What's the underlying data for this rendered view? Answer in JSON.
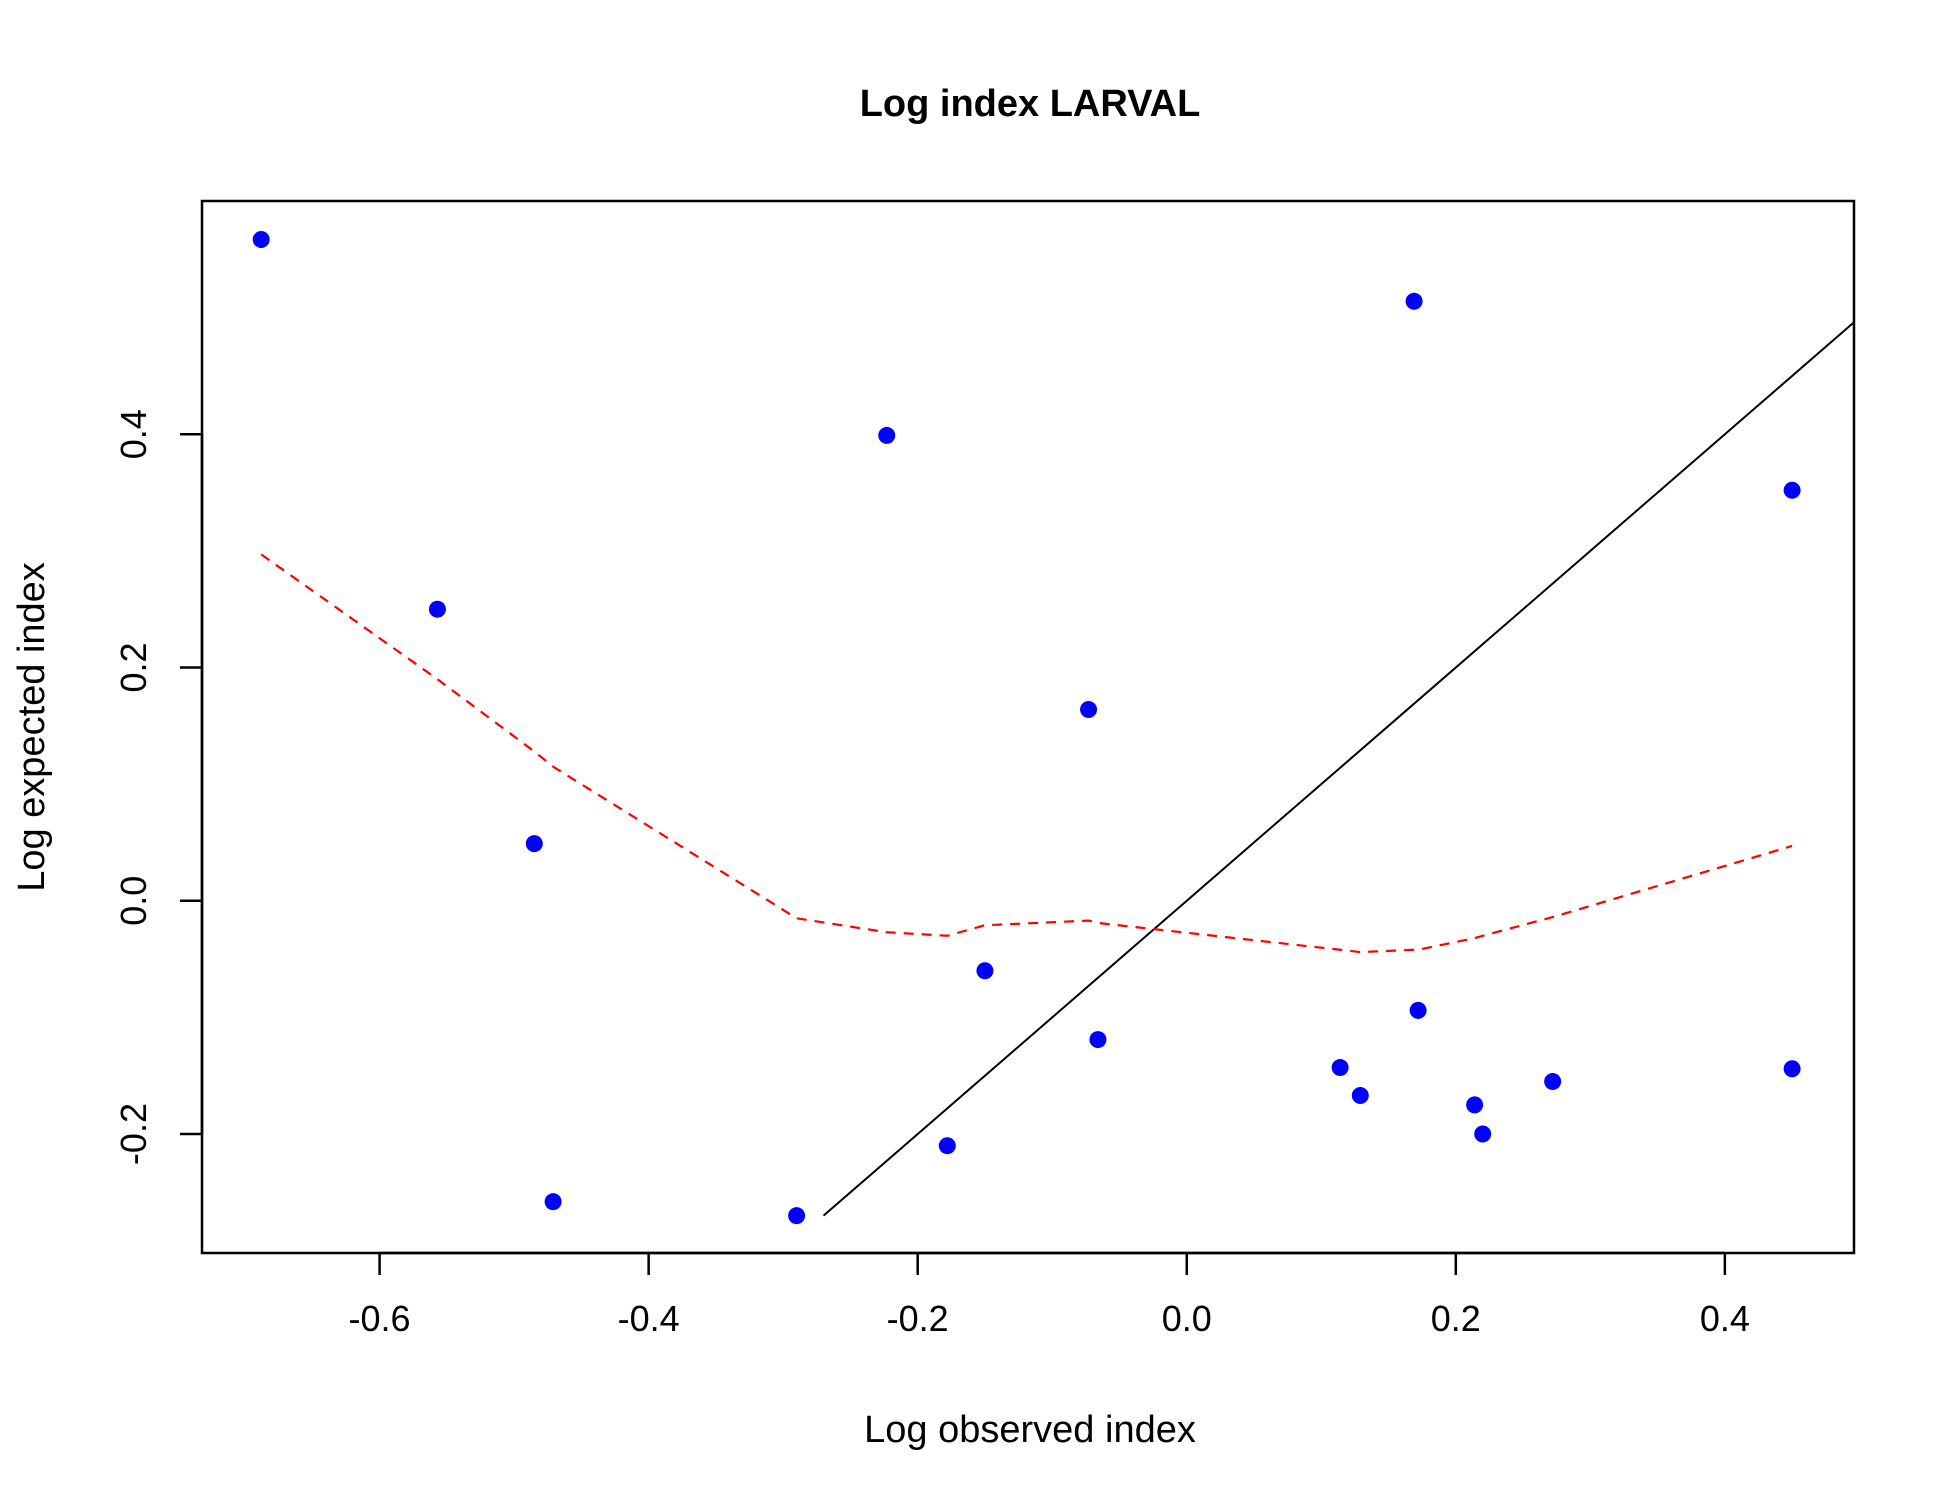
{
  "chart_data": {
    "type": "scatter",
    "title": "Log index LARVAL",
    "xlabel": "Log observed index",
    "ylabel": "Log expected index",
    "xlim": [
      -0.732,
      0.496
    ],
    "ylim": [
      -0.302,
      0.6
    ],
    "x_ticks": [
      -0.6,
      -0.4,
      -0.2,
      0.0,
      0.2,
      0.4
    ],
    "x_tick_labels": [
      "-0.6",
      "-0.4",
      "-0.2",
      "0.0",
      "0.2",
      "0.4"
    ],
    "y_ticks": [
      -0.2,
      0.0,
      0.2,
      0.4
    ],
    "y_tick_labels": [
      "-0.2",
      "0.0",
      "0.2",
      "0.4"
    ],
    "grid": false,
    "legend": "none",
    "point_color": "#0000ff",
    "reference_line_color": "#000000",
    "smooth_line_color": "#ff0000",
    "points": [
      {
        "x": -0.688,
        "y": 0.567
      },
      {
        "x": -0.557,
        "y": 0.25
      },
      {
        "x": -0.485,
        "y": 0.049
      },
      {
        "x": -0.471,
        "y": -0.258
      },
      {
        "x": -0.29,
        "y": -0.27
      },
      {
        "x": -0.223,
        "y": 0.399
      },
      {
        "x": -0.178,
        "y": -0.21
      },
      {
        "x": -0.15,
        "y": -0.06
      },
      {
        "x": -0.073,
        "y": 0.164
      },
      {
        "x": -0.066,
        "y": -0.119
      },
      {
        "x": 0.114,
        "y": -0.143
      },
      {
        "x": 0.129,
        "y": -0.167
      },
      {
        "x": 0.169,
        "y": 0.514
      },
      {
        "x": 0.172,
        "y": -0.094
      },
      {
        "x": 0.214,
        "y": -0.175
      },
      {
        "x": 0.22,
        "y": -0.2
      },
      {
        "x": 0.272,
        "y": -0.155
      },
      {
        "x": 0.45,
        "y": 0.352
      },
      {
        "x": 0.45,
        "y": -0.144
      }
    ],
    "reference_line": {
      "x": [
        -0.27,
        0.496
      ],
      "y": [
        -0.27,
        0.496
      ]
    },
    "smooth_line": {
      "x": [
        -0.688,
        -0.557,
        -0.485,
        -0.471,
        -0.29,
        -0.223,
        -0.178,
        -0.15,
        -0.073,
        -0.066,
        0.114,
        0.129,
        0.169,
        0.172,
        0.214,
        0.22,
        0.272,
        0.45
      ],
      "y": [
        0.297,
        0.19,
        0.128,
        0.115,
        -0.015,
        -0.027,
        -0.03,
        -0.021,
        -0.017,
        -0.019,
        -0.042,
        -0.044,
        -0.042,
        -0.042,
        -0.032,
        -0.03,
        -0.014,
        0.047
      ]
    }
  }
}
